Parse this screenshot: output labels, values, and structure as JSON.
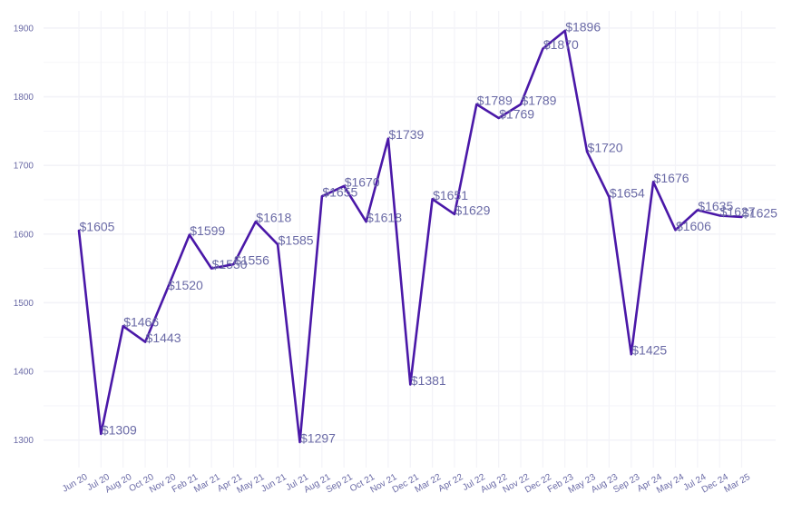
{
  "chart_data": {
    "type": "line",
    "title": "",
    "xlabel": "",
    "ylabel": "",
    "ylim": [
      1260,
      1925
    ],
    "yticks": [
      1300,
      1400,
      1500,
      1600,
      1700,
      1800,
      1900
    ],
    "grid": true,
    "categories": [
      "Jun 20",
      "Jul 20",
      "Aug 20",
      "Oct 20",
      "Nov 20",
      "Feb 21",
      "Mar 21",
      "Apr 21",
      "May 21",
      "Jun 21",
      "Jul 21",
      "Aug 21",
      "Sep 21",
      "Oct 21",
      "Nov 21",
      "Dec 21",
      "Mar 22",
      "Apr 22",
      "Jul 22",
      "Aug 22",
      "Nov 22",
      "Dec 22",
      "Feb 23",
      "May 23",
      "Aug 23",
      "Sep 23",
      "Apr 24",
      "May 24",
      "Jul 24",
      "Dec 24",
      "Mar 25"
    ],
    "values": [
      1605,
      1309,
      1466,
      1443,
      1520,
      1599,
      1550,
      1556,
      1618,
      1585,
      1297,
      1655,
      1670,
      1618,
      1739,
      1381,
      1651,
      1629,
      1789,
      1769,
      1789,
      1870,
      1896,
      1720,
      1654,
      1425,
      1676,
      1606,
      1635,
      1627,
      1625
    ],
    "labels": [
      "$1605",
      "$1309",
      "$1466",
      "$1443",
      "$1520",
      "$1599",
      "$1550",
      "$1556",
      "$1618",
      "$1585",
      "$1297",
      "$1655",
      "$1670",
      "$1618",
      "$1739",
      "$1381",
      "$1651",
      "$1629",
      "$1789",
      "$1769",
      "$1789",
      "$1870",
      "$1896",
      "$1720",
      "$1654",
      "$1425",
      "$1676",
      "$1606",
      "$1635",
      "$1627",
      "$1625"
    ],
    "colors": {
      "line": "#4a18a8",
      "text": "#6a6aa6",
      "grid": "#f3f3f8"
    }
  }
}
